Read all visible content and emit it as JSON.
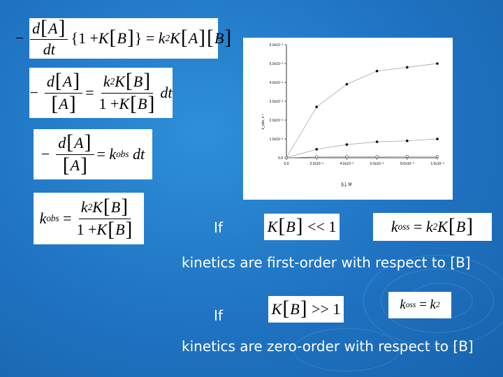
{
  "colors": {
    "background": "#1f73c2",
    "text": "#ffffff"
  },
  "if_label": "If",
  "first_order_text": "kinetics are first-order with respect to [B]",
  "zero_order_text": "kinetics are zero-order with respect to [B]",
  "chart_data": {
    "type": "scatter",
    "xlabel": "[L], M",
    "ylabel": "k_obs, s⁻¹",
    "x_tick_labels": [
      "0.0",
      "2.0x10⁻³",
      "4.0x10⁻³",
      "6.0x10⁻³",
      "8.0x10⁻³",
      "1.0x10⁻²"
    ],
    "y_tick_labels": [
      "0.0",
      "1.0x10⁻³",
      "2.0x10⁻³",
      "3.0x10⁻³",
      "4.0x10⁻³",
      "5.0x10⁻³",
      "6.0x10⁻³"
    ],
    "xlim": [
      0,
      0.01
    ],
    "ylim": [
      0,
      0.006
    ],
    "series": [
      {
        "marker": "filled",
        "x": [
          0,
          0.002,
          0.004,
          0.006,
          0.008,
          0.01
        ],
        "y": [
          0,
          0.0027,
          0.0039,
          0.0046,
          0.0048,
          0.005
        ]
      },
      {
        "marker": "filled",
        "x": [
          0,
          0.002,
          0.004,
          0.006,
          0.008,
          0.01
        ],
        "y": [
          0,
          0.00045,
          0.0007,
          0.00085,
          0.0009,
          0.001
        ]
      },
      {
        "marker": "open",
        "x": [
          0,
          0.002,
          0.004,
          0.006,
          0.008,
          0.01
        ],
        "y": [
          0,
          5e-05,
          6e-05,
          6e-05,
          7e-05,
          7e-05
        ]
      }
    ]
  }
}
